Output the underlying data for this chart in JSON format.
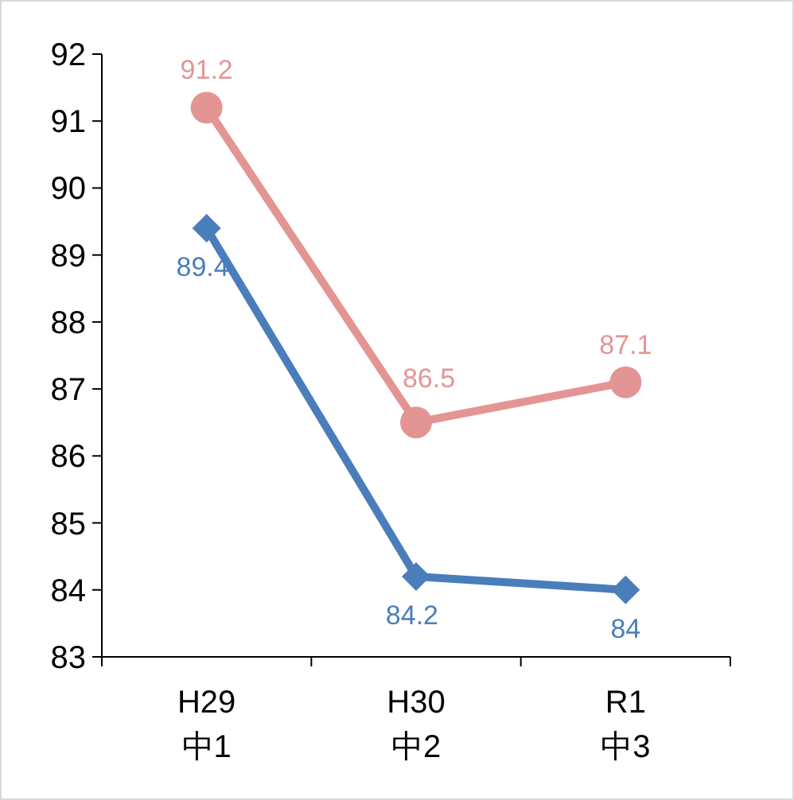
{
  "chart_data": {
    "type": "line",
    "categories": [
      "H29\n中1",
      "H30\n中2",
      "R1\n中3"
    ],
    "series": [
      {
        "color": "#e39594",
        "marker": "circle",
        "values": [
          91.2,
          86.5,
          87.1
        ]
      },
      {
        "color": "#4a7ebb",
        "marker": "diamond",
        "values": [
          89.4,
          84.2,
          84
        ]
      }
    ],
    "ylim": [
      83,
      92
    ],
    "yticks": [
      83,
      84,
      85,
      86,
      87,
      88,
      89,
      90,
      91,
      92
    ],
    "data_labels": true,
    "grid": false
  }
}
